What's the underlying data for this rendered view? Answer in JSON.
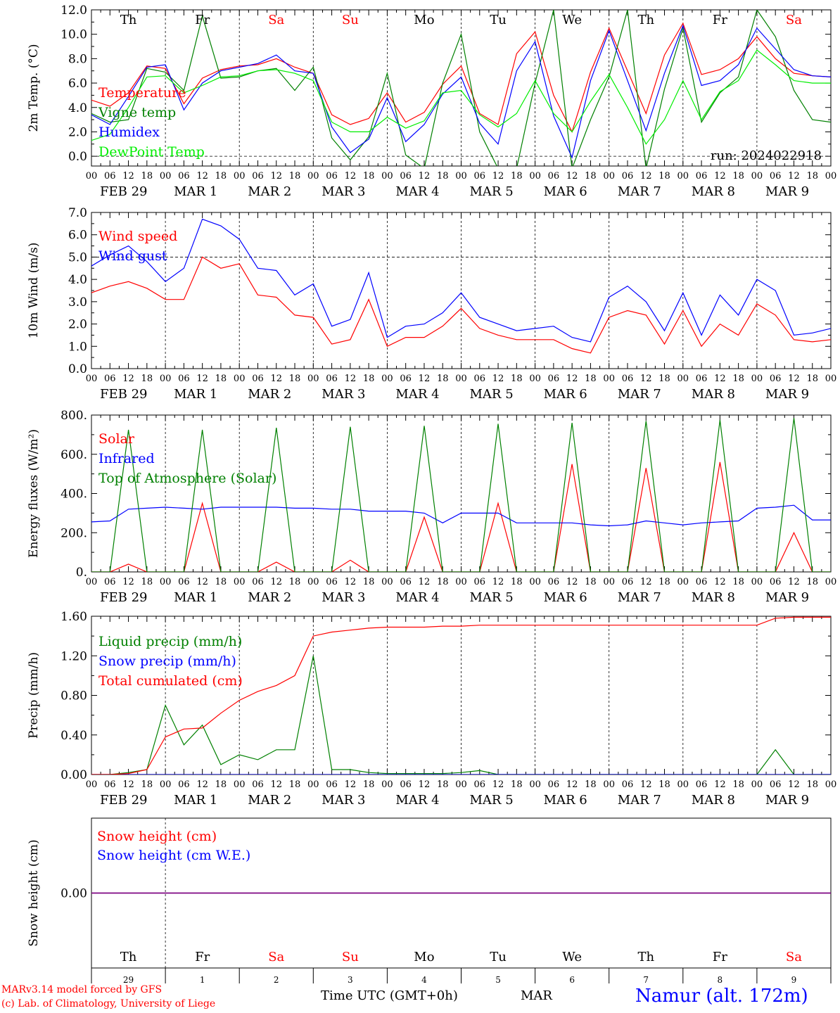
{
  "run_label": "run: 2024022918",
  "station": "Namur (alt. 172m)",
  "model_line1": "MARv3.14 model forced by GFS",
  "model_line2": "(c) Lab. of Climatology, University of Liege",
  "time_axis_label": "Time UTC (GMT+0h)",
  "month_label": "MAR",
  "colors": {
    "red": "#ff0000",
    "green": "#008000",
    "blue": "#0000ff",
    "light_green": "#00ee00",
    "purple": "#7f007f",
    "text": "#000000"
  },
  "days": [
    {
      "weekday": "Th",
      "date_label": "FEB 29",
      "num": "29",
      "weekend": false
    },
    {
      "weekday": "Fr",
      "date_label": "MAR  1",
      "num": "1",
      "weekend": false
    },
    {
      "weekday": "Sa",
      "date_label": "MAR  2",
      "num": "2",
      "weekend": true
    },
    {
      "weekday": "Su",
      "date_label": "MAR  3",
      "num": "3",
      "weekend": true
    },
    {
      "weekday": "Mo",
      "date_label": "MAR  4",
      "num": "4",
      "weekend": false
    },
    {
      "weekday": "Tu",
      "date_label": "MAR  5",
      "num": "5",
      "weekend": false
    },
    {
      "weekday": "We",
      "date_label": "MAR  6",
      "num": "6",
      "weekend": false
    },
    {
      "weekday": "Th",
      "date_label": "MAR  7",
      "num": "7",
      "weekend": false
    },
    {
      "weekday": "Fr",
      "date_label": "MAR  8",
      "num": "8",
      "weekend": false
    },
    {
      "weekday": "Sa",
      "date_label": "MAR  9",
      "num": "9",
      "weekend": true
    }
  ],
  "hour_ticks": [
    "00",
    "06",
    "12",
    "18"
  ],
  "chart_data": [
    {
      "type": "line",
      "ylabel": "2m Temp. (°C)",
      "ylim": [
        -0.8,
        12.0
      ],
      "yticks": [
        "0.0",
        "2.0",
        "4.0",
        "6.0",
        "8.0",
        "10.0",
        "12.0"
      ],
      "ytick_values": [
        0,
        2,
        4,
        6,
        8,
        10,
        12
      ],
      "hline": 0,
      "legend_placement": "left",
      "x_hours": [
        0,
        6,
        12,
        18,
        24,
        30,
        36,
        42,
        48,
        54,
        60,
        66,
        72,
        78,
        84,
        90,
        96,
        102,
        108,
        114,
        120,
        126,
        132,
        138,
        144,
        150,
        156,
        162,
        168,
        174,
        180,
        186,
        192,
        198,
        204,
        210,
        216,
        222,
        228,
        234,
        240
      ],
      "series": [
        {
          "name": "Temperature",
          "color": "red",
          "values": [
            4.6,
            4.1,
            5.2,
            7.4,
            7.2,
            4.3,
            6.4,
            7.1,
            7.4,
            7.5,
            8.0,
            7.3,
            6.8,
            3.4,
            2.6,
            3.1,
            5.2,
            2.8,
            3.6,
            5.9,
            7.4,
            3.5,
            2.6,
            8.4,
            10.2,
            5.0,
            2.0,
            6.9,
            10.5,
            7.0,
            3.5,
            8.3,
            10.9,
            6.7,
            7.1,
            8.0,
            9.8,
            8.0,
            6.8,
            6.6,
            6.5
          ]
        },
        {
          "name": "Vigne temp",
          "color": "green",
          "values": [
            3.5,
            2.8,
            3.0,
            7.2,
            6.9,
            5.4,
            11.5,
            6.4,
            6.5,
            7.0,
            7.2,
            5.4,
            7.3,
            1.5,
            -0.3,
            1.6,
            6.8,
            0.1,
            -1.0,
            6.0,
            10.0,
            2.0,
            -1.0,
            -1.0,
            6.0,
            12.0,
            -1.0,
            3.0,
            6.5,
            12.0,
            -1.0,
            5.5,
            10.5,
            2.8,
            5.2,
            6.5,
            12.0,
            9.8,
            5.4,
            3.0,
            2.8
          ]
        },
        {
          "name": "Humidex",
          "color": "blue",
          "values": [
            3.4,
            2.6,
            4.9,
            7.3,
            7.5,
            3.8,
            6.0,
            7.0,
            7.3,
            7.6,
            8.3,
            7.0,
            6.8,
            2.4,
            0.3,
            1.4,
            4.8,
            1.2,
            2.6,
            5.1,
            6.5,
            2.7,
            1.0,
            7.0,
            9.4,
            3.3,
            -0.1,
            6.2,
            10.3,
            6.2,
            2.1,
            6.8,
            10.7,
            5.8,
            6.2,
            7.5,
            10.5,
            8.8,
            7.1,
            6.6,
            6.5
          ]
        },
        {
          "name": "DewPoint Temp",
          "color": "light_green",
          "values": [
            1.3,
            1.8,
            4.0,
            6.5,
            6.6,
            5.2,
            5.8,
            6.5,
            6.6,
            7.0,
            7.1,
            6.8,
            6.2,
            2.8,
            2.0,
            2.0,
            3.2,
            2.3,
            2.9,
            5.2,
            5.4,
            3.4,
            2.4,
            3.5,
            6.2,
            3.5,
            2.0,
            4.5,
            6.7,
            4.0,
            1.0,
            3.0,
            6.2,
            3.0,
            5.3,
            6.2,
            8.7,
            7.5,
            6.2,
            6.0,
            6.0
          ]
        }
      ]
    },
    {
      "type": "line",
      "ylabel": "10m Wind (m/s)",
      "ylim": [
        0,
        7.0
      ],
      "yticks": [
        "0.0",
        "1.0",
        "2.0",
        "3.0",
        "4.0",
        "5.0",
        "6.0",
        "7.0"
      ],
      "ytick_values": [
        0,
        1,
        2,
        3,
        4,
        5,
        6,
        7
      ],
      "hline": 5,
      "legend_placement": "left",
      "x_hours": [
        0,
        6,
        12,
        18,
        24,
        30,
        36,
        42,
        48,
        54,
        60,
        66,
        72,
        78,
        84,
        90,
        96,
        102,
        108,
        114,
        120,
        126,
        132,
        138,
        144,
        150,
        156,
        162,
        168,
        174,
        180,
        186,
        192,
        198,
        204,
        210,
        216,
        222,
        228,
        234,
        240
      ],
      "series": [
        {
          "name": "Wind speed",
          "color": "red",
          "values": [
            3.4,
            3.7,
            3.9,
            3.6,
            3.1,
            3.1,
            5.0,
            4.5,
            4.7,
            3.3,
            3.2,
            2.4,
            2.3,
            1.1,
            1.3,
            3.1,
            1.0,
            1.4,
            1.4,
            1.9,
            2.7,
            1.8,
            1.5,
            1.3,
            1.3,
            1.3,
            0.9,
            0.7,
            2.3,
            2.6,
            2.4,
            1.1,
            2.6,
            1.0,
            2.0,
            1.5,
            2.9,
            2.4,
            1.3,
            1.2,
            1.3
          ]
        },
        {
          "name": "Wind gust",
          "color": "blue",
          "values": [
            4.6,
            5.1,
            5.5,
            4.8,
            3.9,
            4.5,
            6.7,
            6.4,
            5.8,
            4.5,
            4.4,
            3.3,
            3.8,
            1.9,
            2.2,
            4.3,
            1.4,
            1.9,
            2.0,
            2.5,
            3.4,
            2.3,
            2.0,
            1.7,
            1.8,
            1.9,
            1.4,
            1.2,
            3.2,
            3.7,
            3.0,
            1.7,
            3.4,
            1.5,
            3.3,
            2.4,
            4.0,
            3.5,
            1.5,
            1.6,
            1.8
          ]
        }
      ]
    },
    {
      "type": "line",
      "ylabel": "Energy fluxes (W/m²)",
      "ylim": [
        0,
        800
      ],
      "yticks": [
        "0.",
        "200.",
        "400.",
        "600.",
        "800."
      ],
      "ytick_values": [
        0,
        200,
        400,
        600,
        800
      ],
      "legend_placement": "left",
      "x_hours": [
        0,
        6,
        12,
        18,
        24,
        30,
        36,
        42,
        48,
        54,
        60,
        66,
        72,
        78,
        84,
        90,
        96,
        102,
        108,
        114,
        120,
        126,
        132,
        138,
        144,
        150,
        156,
        162,
        168,
        174,
        180,
        186,
        192,
        198,
        204,
        210,
        216,
        222,
        228,
        234,
        240
      ],
      "series": [
        {
          "name": "Solar",
          "color": "red",
          "values": [
            0,
            0,
            40,
            0,
            0,
            0,
            350,
            0,
            0,
            0,
            50,
            0,
            0,
            0,
            60,
            0,
            0,
            0,
            280,
            0,
            0,
            0,
            350,
            0,
            0,
            0,
            550,
            0,
            0,
            0,
            530,
            0,
            0,
            0,
            560,
            0,
            0,
            0,
            200,
            0,
            0
          ]
        },
        {
          "name": "Infrared",
          "color": "blue",
          "values": [
            255,
            260,
            320,
            325,
            330,
            325,
            320,
            330,
            330,
            330,
            330,
            325,
            325,
            320,
            320,
            310,
            310,
            310,
            300,
            250,
            300,
            300,
            300,
            250,
            250,
            250,
            250,
            240,
            235,
            240,
            260,
            250,
            240,
            250,
            255,
            260,
            325,
            330,
            340,
            265,
            265
          ]
        },
        {
          "name": "Top of Atmosphere (Solar)",
          "color": "green",
          "values": [
            0,
            0,
            725,
            0,
            0,
            0,
            725,
            0,
            0,
            0,
            735,
            0,
            0,
            0,
            740,
            0,
            0,
            0,
            745,
            0,
            0,
            0,
            755,
            0,
            0,
            0,
            760,
            0,
            0,
            0,
            770,
            0,
            0,
            0,
            775,
            0,
            0,
            0,
            785,
            0,
            0
          ]
        }
      ]
    },
    {
      "type": "line",
      "ylabel": "Precip (mm/h)",
      "ylim": [
        0,
        1.6
      ],
      "yticks": [
        "0.00",
        "0.40",
        "0.80",
        "1.20",
        "1.60"
      ],
      "ytick_values": [
        0,
        0.4,
        0.8,
        1.2,
        1.6
      ],
      "legend_placement": "left",
      "x_hours": [
        0,
        6,
        12,
        18,
        24,
        30,
        36,
        42,
        48,
        54,
        60,
        66,
        72,
        78,
        84,
        90,
        96,
        102,
        108,
        114,
        120,
        126,
        132,
        138,
        144,
        150,
        156,
        162,
        168,
        174,
        180,
        186,
        192,
        198,
        204,
        210,
        216,
        222,
        228,
        234,
        240
      ],
      "series": [
        {
          "name": "Liquid precip (mm/h)",
          "color": "green",
          "values": [
            0,
            0,
            0.02,
            0.05,
            0.7,
            0.3,
            0.5,
            0.1,
            0.2,
            0.15,
            0.25,
            0.25,
            1.2,
            0.05,
            0.05,
            0.02,
            0.01,
            0.01,
            0.01,
            0.01,
            0.02,
            0.04,
            0,
            0,
            0,
            0,
            0,
            0,
            0,
            0,
            0,
            0,
            0,
            0,
            0,
            0,
            0,
            0.25,
            0,
            0,
            0
          ]
        },
        {
          "name": "Snow precip (mm/h)",
          "color": "blue",
          "values": [
            0,
            0,
            0,
            0,
            0,
            0,
            0,
            0,
            0,
            0,
            0,
            0,
            0,
            0,
            0,
            0,
            0,
            0,
            0,
            0,
            0,
            0,
            0,
            0,
            0,
            0,
            0,
            0,
            0,
            0,
            0,
            0,
            0,
            0,
            0,
            0,
            0,
            0,
            0,
            0,
            0
          ]
        },
        {
          "name": "Total cumulated (cm)",
          "color": "red",
          "values": [
            0,
            0,
            0.01,
            0.05,
            0.38,
            0.46,
            0.47,
            0.62,
            0.75,
            0.84,
            0.9,
            1.0,
            1.4,
            1.44,
            1.46,
            1.48,
            1.49,
            1.49,
            1.49,
            1.5,
            1.5,
            1.51,
            1.51,
            1.51,
            1.51,
            1.51,
            1.51,
            1.51,
            1.51,
            1.51,
            1.51,
            1.51,
            1.51,
            1.51,
            1.51,
            1.51,
            1.51,
            1.58,
            1.59,
            1.59,
            1.59
          ]
        }
      ]
    },
    {
      "type": "line",
      "ylabel": "Snow height (cm)",
      "ylim": [
        -1,
        1
      ],
      "yticks": [
        "0.00"
      ],
      "ytick_values": [
        0
      ],
      "legend_placement": "left",
      "x_hours": [
        0,
        240
      ],
      "series": [
        {
          "name": "Snow height (cm)",
          "color": "red",
          "values": [
            0,
            0
          ]
        },
        {
          "name": "Snow height (cm W.E.)",
          "color": "blue",
          "values": [
            0,
            0
          ]
        }
      ]
    }
  ]
}
